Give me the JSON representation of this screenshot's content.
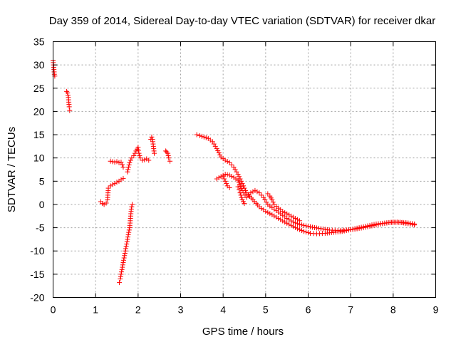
{
  "chart_data": {
    "type": "scatter",
    "title": "Day 359 of 2014, Sidereal Day-to-day VTEC variation (SDTVAR) for receiver dkar",
    "xlabel": "GPS time / hours",
    "ylabel": "SDTVAR / TECUs",
    "xlim": [
      0,
      9
    ],
    "ylim": [
      -20,
      35
    ],
    "xticks": [
      "0",
      "1",
      "2",
      "3",
      "4",
      "5",
      "6",
      "7",
      "8",
      "9"
    ],
    "yticks": [
      "-20",
      "-15",
      "-10",
      "-5",
      "0",
      "5",
      "10",
      "15",
      "20",
      "25",
      "30",
      "35"
    ],
    "grid": true,
    "marker": "+",
    "color": "#ff0000",
    "series": [
      {
        "name": "seg1",
        "x": [
          0.0,
          0.01,
          0.02,
          0.03,
          0.04
        ],
        "y": [
          31.0,
          30.0,
          29.0,
          28.0,
          27.6
        ]
      },
      {
        "name": "seg2",
        "x": [
          0.32,
          0.34,
          0.36,
          0.37,
          0.38,
          0.39
        ],
        "y": [
          24.3,
          24.0,
          23.0,
          22.0,
          21.0,
          20.2
        ]
      },
      {
        "name": "seg3",
        "x": [
          1.12,
          1.16,
          1.2,
          1.25,
          1.28,
          1.3,
          1.35,
          1.4,
          1.45,
          1.5,
          1.55,
          1.6,
          1.65
        ],
        "y": [
          0.6,
          0.2,
          0.0,
          0.3,
          1.0,
          3.5,
          4.0,
          4.3,
          4.5,
          4.8,
          5.0,
          5.3,
          5.6
        ]
      },
      {
        "name": "seg4",
        "x": [
          1.35,
          1.4,
          1.45,
          1.5,
          1.55,
          1.6,
          1.65
        ],
        "y": [
          9.3,
          9.2,
          9.1,
          9.2,
          9.0,
          9.1,
          8.0
        ]
      },
      {
        "name": "seg5",
        "x": [
          1.56,
          1.58,
          1.6,
          1.62,
          1.64,
          1.66,
          1.68,
          1.7,
          1.72,
          1.74,
          1.76,
          1.78,
          1.8,
          1.82,
          1.84,
          1.86
        ],
        "y": [
          -16.8,
          -16.0,
          -15.0,
          -14.0,
          -13.0,
          -12.0,
          -11.0,
          -10.0,
          -9.0,
          -8.0,
          -7.0,
          -6.0,
          -5.0,
          -3.0,
          -1.0,
          0.0
        ]
      },
      {
        "name": "seg6",
        "x": [
          1.75,
          1.8,
          1.85,
          1.9,
          1.95,
          2.0,
          2.02,
          2.05,
          2.1,
          2.15,
          2.2,
          2.25
        ],
        "y": [
          7.0,
          9.0,
          10.0,
          10.5,
          11.5,
          12.3,
          11.0,
          10.0,
          9.5,
          9.6,
          9.8,
          9.5
        ]
      },
      {
        "name": "seg7",
        "x": [
          2.3,
          2.32,
          2.34,
          2.36,
          2.38
        ],
        "y": [
          14.0,
          14.5,
          14.0,
          12.5,
          11.0
        ]
      },
      {
        "name": "seg8",
        "x": [
          2.65,
          2.67,
          2.7,
          2.72,
          2.75
        ],
        "y": [
          11.5,
          11.3,
          11.0,
          10.0,
          9.3
        ]
      },
      {
        "name": "seg9",
        "x": [
          3.38,
          3.45,
          3.55,
          3.65,
          3.75,
          3.85,
          3.95,
          4.05,
          4.15,
          4.25,
          4.35,
          4.45,
          4.55,
          4.7,
          4.85,
          5.0,
          5.15,
          5.3,
          5.45,
          5.6,
          5.75,
          5.9,
          6.05,
          6.2,
          6.4,
          6.6,
          6.8,
          7.0,
          7.2,
          7.4,
          7.6,
          7.8,
          8.0,
          8.2,
          8.4,
          8.5
        ],
        "y": [
          15.0,
          14.8,
          14.5,
          14.2,
          13.5,
          12.0,
          10.2,
          9.5,
          9.0,
          8.0,
          6.5,
          4.5,
          2.5,
          1.0,
          -0.5,
          -1.5,
          -2.2,
          -3.0,
          -3.8,
          -4.5,
          -5.2,
          -5.8,
          -6.2,
          -6.3,
          -6.2,
          -6.0,
          -5.8,
          -5.4,
          -5.0,
          -4.6,
          -4.2,
          -4.0,
          -3.8,
          -3.9,
          -4.2,
          -4.4
        ]
      },
      {
        "name": "seg10",
        "x": [
          3.85,
          3.95,
          4.05,
          4.15,
          4.25,
          4.35,
          4.45,
          4.55,
          4.65,
          4.75,
          4.85,
          4.95,
          5.05,
          5.2,
          5.35,
          5.5,
          5.65,
          5.8,
          5.95,
          6.1,
          6.3,
          6.5,
          6.7,
          6.9,
          7.1,
          7.3,
          7.5,
          7.7,
          7.9,
          8.1,
          8.3,
          8.5
        ],
        "y": [
          5.5,
          6.0,
          6.5,
          6.3,
          5.8,
          5.2,
          3.0,
          1.5,
          2.5,
          3.0,
          2.5,
          1.5,
          0.0,
          -1.0,
          -2.0,
          -3.0,
          -3.8,
          -4.3,
          -4.6,
          -4.9,
          -5.2,
          -5.5,
          -5.6,
          -5.5,
          -5.3,
          -5.0,
          -4.6,
          -4.2,
          -3.9,
          -3.8,
          -3.9,
          -4.2
        ]
      },
      {
        "name": "seg11",
        "x": [
          4.0,
          4.05,
          4.1,
          4.15
        ],
        "y": [
          6.0,
          5.0,
          4.0,
          3.6
        ]
      },
      {
        "name": "seg12",
        "x": [
          4.35,
          4.4,
          4.45,
          4.5
        ],
        "y": [
          3.8,
          2.5,
          1.0,
          0.2
        ]
      },
      {
        "name": "seg13",
        "x": [
          5.05,
          5.1,
          5.15,
          5.2,
          5.3,
          5.4,
          5.5,
          5.6,
          5.7,
          5.8
        ],
        "y": [
          2.3,
          1.8,
          1.0,
          0.0,
          -0.8,
          -1.5,
          -2.0,
          -2.5,
          -3.0,
          -3.5
        ]
      }
    ]
  }
}
